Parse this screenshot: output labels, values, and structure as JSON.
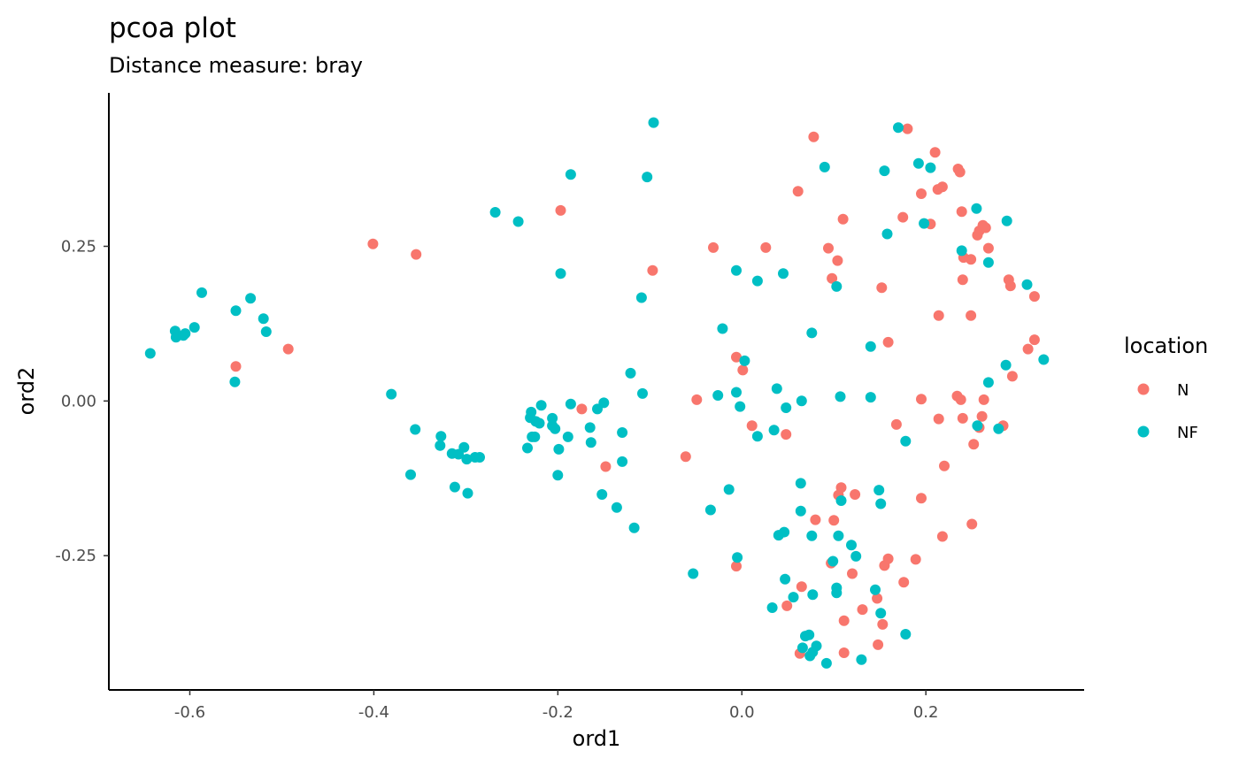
{
  "chart_data": {
    "type": "scatter",
    "title": "pcoa plot",
    "subtitle": "Distance measure:  bray",
    "xlabel": "ord1",
    "ylabel": "ord2",
    "xlim": [
      -0.688,
      0.372
    ],
    "ylim": [
      -0.467,
      0.498
    ],
    "x_ticks": [
      -0.6,
      -0.4,
      -0.2,
      0.0,
      0.2
    ],
    "x_tick_labels": [
      "-0.6",
      "-0.4",
      "-0.2",
      "0.0",
      "0.2"
    ],
    "y_ticks": [
      -0.25,
      0.0,
      0.25
    ],
    "y_tick_labels": [
      "-0.25",
      "0.00",
      "0.25"
    ],
    "grid": false,
    "legend": {
      "title": "location",
      "position": "right"
    },
    "series": [
      {
        "name": "N",
        "color": "#F8766D",
        "points": [
          [
            -0.401,
            0.254
          ],
          [
            -0.354,
            0.237
          ],
          [
            -0.55,
            0.056
          ],
          [
            -0.493,
            0.084
          ],
          [
            -0.197,
            0.308
          ],
          [
            -0.097,
            0.211
          ],
          [
            -0.174,
            -0.013
          ],
          [
            -0.148,
            -0.106
          ],
          [
            -0.061,
            -0.09
          ],
          [
            -0.049,
            0.002
          ],
          [
            -0.031,
            0.248
          ],
          [
            0.026,
            0.248
          ],
          [
            0.061,
            0.339
          ],
          [
            0.078,
            0.427
          ],
          [
            0.094,
            0.247
          ],
          [
            0.104,
            0.227
          ],
          [
            0.11,
            0.294
          ],
          [
            0.098,
            0.198
          ],
          [
            0.152,
            0.183
          ],
          [
            0.159,
            0.095
          ],
          [
            0.175,
            0.297
          ],
          [
            0.18,
            0.44
          ],
          [
            0.195,
            0.335
          ],
          [
            0.205,
            0.286
          ],
          [
            0.21,
            0.402
          ],
          [
            0.213,
            0.342
          ],
          [
            0.218,
            0.346
          ],
          [
            0.235,
            0.375
          ],
          [
            0.237,
            0.37
          ],
          [
            0.239,
            0.306
          ],
          [
            0.241,
            0.232
          ],
          [
            0.249,
            0.229
          ],
          [
            0.24,
            0.196
          ],
          [
            0.214,
            0.138
          ],
          [
            0.249,
            0.138
          ],
          [
            0.256,
            0.268
          ],
          [
            0.258,
            0.275
          ],
          [
            0.262,
            0.284
          ],
          [
            0.265,
            0.28
          ],
          [
            0.268,
            0.247
          ],
          [
            0.29,
            0.196
          ],
          [
            0.292,
            0.186
          ],
          [
            0.318,
            0.169
          ],
          [
            0.318,
            0.099
          ],
          [
            0.311,
            0.084
          ],
          [
            0.294,
            0.04
          ],
          [
            0.234,
            0.008
          ],
          [
            0.238,
            0.002
          ],
          [
            0.263,
            0.002
          ],
          [
            0.261,
            -0.025
          ],
          [
            0.284,
            -0.04
          ],
          [
            0.258,
            -0.043
          ],
          [
            0.252,
            -0.07
          ],
          [
            0.24,
            -0.028
          ],
          [
            0.214,
            -0.029
          ],
          [
            0.195,
            0.003
          ],
          [
            0.168,
            -0.038
          ],
          [
            -0.006,
            0.071
          ],
          [
            0.001,
            0.05
          ],
          [
            0.011,
            -0.04
          ],
          [
            0.048,
            -0.054
          ],
          [
            0.108,
            -0.14
          ],
          [
            0.105,
            -0.152
          ],
          [
            0.123,
            -0.151
          ],
          [
            0.195,
            -0.157
          ],
          [
            0.218,
            -0.219
          ],
          [
            0.25,
            -0.199
          ],
          [
            0.22,
            -0.105
          ],
          [
            0.08,
            -0.192
          ],
          [
            0.1,
            -0.193
          ],
          [
            0.097,
            -0.262
          ],
          [
            0.12,
            -0.279
          ],
          [
            0.155,
            -0.266
          ],
          [
            0.159,
            -0.255
          ],
          [
            0.189,
            -0.256
          ],
          [
            0.176,
            -0.293
          ],
          [
            0.065,
            -0.3
          ],
          [
            0.049,
            -0.331
          ],
          [
            0.131,
            -0.337
          ],
          [
            0.147,
            -0.319
          ],
          [
            0.153,
            -0.361
          ],
          [
            0.111,
            -0.355
          ],
          [
            0.148,
            -0.394
          ],
          [
            0.111,
            -0.407
          ],
          [
            0.063,
            -0.408
          ],
          [
            -0.006,
            -0.267
          ]
        ]
      },
      {
        "name": "NF",
        "color": "#00BFC4",
        "points": [
          [
            -0.643,
            0.077
          ],
          [
            -0.616,
            0.113
          ],
          [
            -0.615,
            0.103
          ],
          [
            -0.607,
            0.106
          ],
          [
            -0.605,
            0.109
          ],
          [
            -0.595,
            0.119
          ],
          [
            -0.587,
            0.175
          ],
          [
            -0.55,
            0.146
          ],
          [
            -0.534,
            0.166
          ],
          [
            -0.52,
            0.133
          ],
          [
            -0.517,
            0.112
          ],
          [
            -0.551,
            0.031
          ],
          [
            -0.381,
            0.011
          ],
          [
            -0.355,
            -0.046
          ],
          [
            -0.36,
            -0.119
          ],
          [
            -0.327,
            -0.057
          ],
          [
            -0.328,
            -0.072
          ],
          [
            -0.315,
            -0.085
          ],
          [
            -0.308,
            -0.086
          ],
          [
            -0.302,
            -0.075
          ],
          [
            -0.299,
            -0.094
          ],
          [
            -0.29,
            -0.091
          ],
          [
            -0.285,
            -0.091
          ],
          [
            -0.312,
            -0.139
          ],
          [
            -0.298,
            -0.149
          ],
          [
            -0.268,
            0.305
          ],
          [
            -0.243,
            0.29
          ],
          [
            -0.186,
            0.366
          ],
          [
            -0.197,
            0.206
          ],
          [
            -0.103,
            0.362
          ],
          [
            -0.096,
            0.45
          ],
          [
            -0.109,
            0.167
          ],
          [
            -0.233,
            -0.076
          ],
          [
            -0.23,
            -0.027
          ],
          [
            -0.229,
            -0.018
          ],
          [
            -0.228,
            -0.058
          ],
          [
            -0.225,
            -0.058
          ],
          [
            -0.224,
            -0.033
          ],
          [
            -0.22,
            -0.036
          ],
          [
            -0.218,
            -0.007
          ],
          [
            -0.206,
            -0.028
          ],
          [
            -0.206,
            -0.04
          ],
          [
            -0.203,
            -0.045
          ],
          [
            -0.2,
            -0.12
          ],
          [
            -0.199,
            -0.078
          ],
          [
            -0.189,
            -0.058
          ],
          [
            -0.186,
            -0.005
          ],
          [
            -0.165,
            -0.043
          ],
          [
            -0.164,
            -0.067
          ],
          [
            -0.157,
            -0.013
          ],
          [
            -0.15,
            -0.003
          ],
          [
            -0.152,
            -0.151
          ],
          [
            -0.136,
            -0.172
          ],
          [
            -0.117,
            -0.205
          ],
          [
            -0.13,
            -0.051
          ],
          [
            -0.13,
            -0.098
          ],
          [
            -0.121,
            0.045
          ],
          [
            -0.108,
            0.012
          ],
          [
            -0.021,
            0.117
          ],
          [
            -0.006,
            0.211
          ],
          [
            0.017,
            0.194
          ],
          [
            0.045,
            0.206
          ],
          [
            0.003,
            0.065
          ],
          [
            0.076,
            0.11
          ],
          [
            -0.026,
            0.009
          ],
          [
            -0.006,
            0.014
          ],
          [
            -0.002,
            -0.009
          ],
          [
            0.017,
            -0.057
          ],
          [
            0.035,
            -0.047
          ],
          [
            0.038,
            0.02
          ],
          [
            0.048,
            -0.011
          ],
          [
            0.065,
            0.0
          ],
          [
            0.107,
            0.007
          ],
          [
            0.14,
            0.006
          ],
          [
            0.178,
            -0.065
          ],
          [
            0.14,
            0.088
          ],
          [
            0.158,
            0.27
          ],
          [
            0.155,
            0.372
          ],
          [
            0.09,
            0.378
          ],
          [
            0.17,
            0.442
          ],
          [
            0.192,
            0.384
          ],
          [
            0.205,
            0.377
          ],
          [
            0.198,
            0.287
          ],
          [
            0.255,
            0.311
          ],
          [
            0.239,
            0.243
          ],
          [
            0.268,
            0.224
          ],
          [
            0.288,
            0.291
          ],
          [
            0.31,
            0.188
          ],
          [
            0.328,
            0.067
          ],
          [
            0.287,
            0.058
          ],
          [
            0.268,
            0.03
          ],
          [
            0.279,
            -0.045
          ],
          [
            0.256,
            -0.04
          ],
          [
            0.103,
            0.185
          ],
          [
            -0.014,
            -0.143
          ],
          [
            -0.034,
            -0.176
          ],
          [
            -0.053,
            -0.279
          ],
          [
            -0.005,
            -0.253
          ],
          [
            0.064,
            -0.133
          ],
          [
            0.064,
            -0.178
          ],
          [
            0.046,
            -0.212
          ],
          [
            0.04,
            -0.217
          ],
          [
            0.076,
            -0.218
          ],
          [
            0.105,
            -0.218
          ],
          [
            0.119,
            -0.233
          ],
          [
            0.124,
            -0.251
          ],
          [
            0.108,
            -0.161
          ],
          [
            0.149,
            -0.144
          ],
          [
            0.151,
            -0.166
          ],
          [
            0.099,
            -0.259
          ],
          [
            0.103,
            -0.302
          ],
          [
            0.103,
            -0.31
          ],
          [
            0.047,
            -0.288
          ],
          [
            0.056,
            -0.317
          ],
          [
            0.077,
            -0.313
          ],
          [
            0.145,
            -0.305
          ],
          [
            0.151,
            -0.343
          ],
          [
            0.033,
            -0.334
          ],
          [
            0.069,
            -0.38
          ],
          [
            0.073,
            -0.378
          ],
          [
            0.077,
            -0.406
          ],
          [
            0.081,
            -0.396
          ],
          [
            0.066,
            -0.399
          ],
          [
            0.074,
            -0.412
          ],
          [
            0.092,
            -0.424
          ],
          [
            0.13,
            -0.418
          ],
          [
            0.178,
            -0.377
          ]
        ]
      }
    ]
  }
}
